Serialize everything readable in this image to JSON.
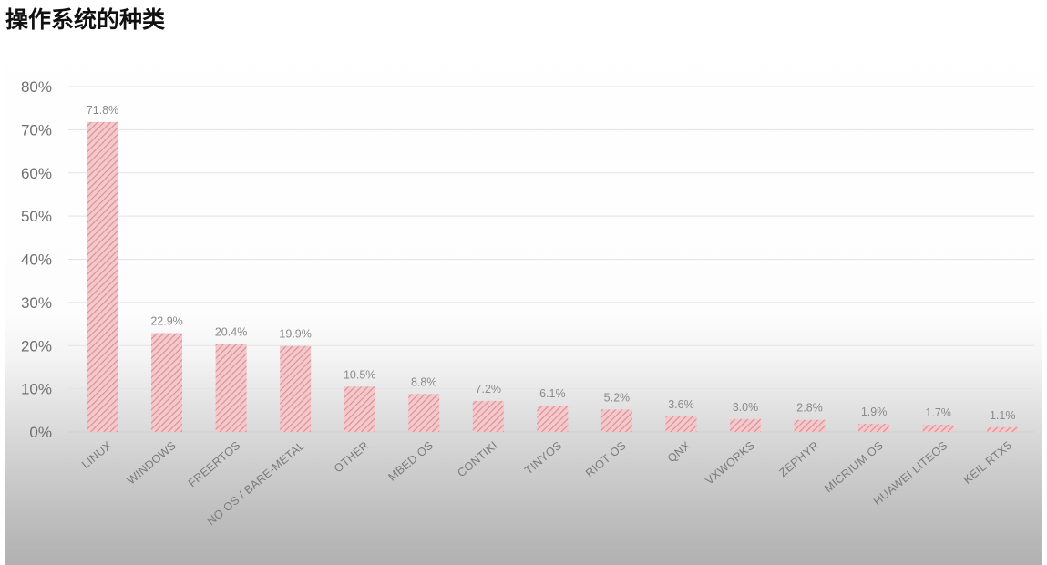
{
  "page": {
    "title": "操作系统的种类"
  },
  "colors": {
    "bar_fill": "#f3c9cc",
    "bar_hatch": "#dc8c92",
    "grid": "#e3e3e3",
    "tick_text": "#6f6f6f"
  },
  "chart_data": {
    "type": "bar",
    "title": "",
    "xlabel": "",
    "ylabel": "",
    "ylim": [
      0,
      80
    ],
    "yticks": [
      "0%",
      "10%",
      "20%",
      "30%",
      "40%",
      "50%",
      "60%",
      "70%",
      "80%"
    ],
    "grid": true,
    "legend": "none",
    "categories": [
      "LINUX",
      "WINDOWS",
      "FREERTOS",
      "NO OS / BARE-METAL",
      "OTHER",
      "MBED OS",
      "CONTIKI",
      "TINYOS",
      "RIOT OS",
      "QNX",
      "VXWORKS",
      "ZEPHYR",
      "MICRIUM OS",
      "HUAWEI LITEOS",
      "KEIL RTX5"
    ],
    "values": [
      71.8,
      22.9,
      20.4,
      19.9,
      10.5,
      8.8,
      7.2,
      6.1,
      5.2,
      3.6,
      3.0,
      2.8,
      1.9,
      1.7,
      1.1
    ],
    "data_labels": [
      "71.8%",
      "22.9%",
      "20.4%",
      "19.9%",
      "10.5%",
      "8.8%",
      "7.2%",
      "6.1%",
      "5.2%",
      "3.6%",
      "3.0%",
      "2.8%",
      "1.9%",
      "1.7%",
      "1.1%"
    ]
  }
}
